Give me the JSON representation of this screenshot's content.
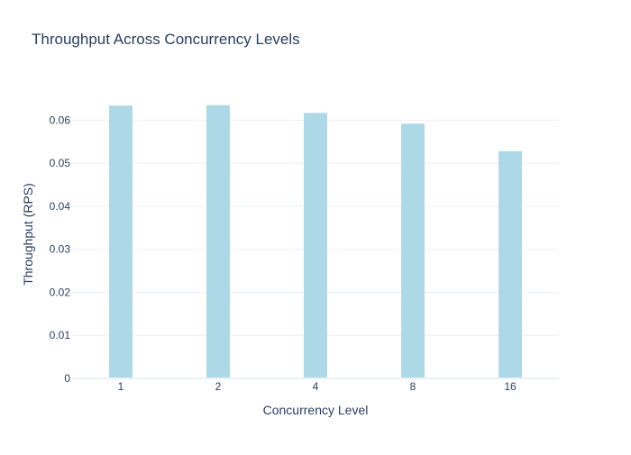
{
  "chart_data": {
    "type": "bar",
    "title": "Throughput Across Concurrency Levels",
    "xlabel": "Concurrency Level",
    "ylabel": "Throughput (RPS)",
    "categories": [
      "1",
      "2",
      "4",
      "8",
      "16"
    ],
    "values": [
      0.0634,
      0.0635,
      0.0617,
      0.0592,
      0.0528
    ],
    "ylim": [
      0,
      0.067
    ],
    "yticks": [
      0,
      0.01,
      0.02,
      0.03,
      0.04,
      0.05,
      0.06
    ],
    "ytick_labels": [
      "0",
      "0.01",
      "0.02",
      "0.03",
      "0.04",
      "0.05",
      "0.06"
    ],
    "grid": true,
    "legend": "none",
    "colors": {
      "bar_fill": "#add8e6",
      "grid": "#ebf0f8",
      "text": "#2a3f5f",
      "background": "#ffffff"
    }
  }
}
